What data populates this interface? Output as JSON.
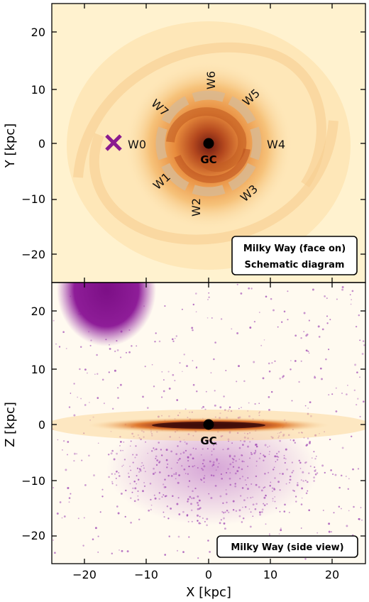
{
  "top_panel": {
    "ylabel": "Y [kpc]",
    "yticks": [
      "20",
      "10",
      "0",
      "−10",
      "−20"
    ],
    "wedges": [
      {
        "label": "W0"
      },
      {
        "label": "W1"
      },
      {
        "label": "W2"
      },
      {
        "label": "W3"
      },
      {
        "label": "W4"
      },
      {
        "label": "W5"
      },
      {
        "label": "W6"
      },
      {
        "label": "W7"
      }
    ],
    "gc_label": "GC",
    "legend": [
      "Milky Way (face on)",
      "Schematic diagram"
    ],
    "colors": {
      "marker": "#8a1a8f",
      "disk_core": "#6b1a10",
      "disk_mid": "#e6893a",
      "background": "#fff2cf"
    }
  },
  "bottom_panel": {
    "ylabel": "Z [kpc]",
    "xlabel": "X [kpc]",
    "yticks": [
      "20",
      "10",
      "0",
      "−10",
      "−20"
    ],
    "xticks": [
      "−20",
      "−10",
      "0",
      "10",
      "20"
    ],
    "gc_label": "GC",
    "legend": [
      "Milky Way (side view)"
    ],
    "colors": {
      "stars": "#9b3fb0",
      "satellite": "#8a1a8f",
      "disk": "#7a1e14"
    }
  }
}
